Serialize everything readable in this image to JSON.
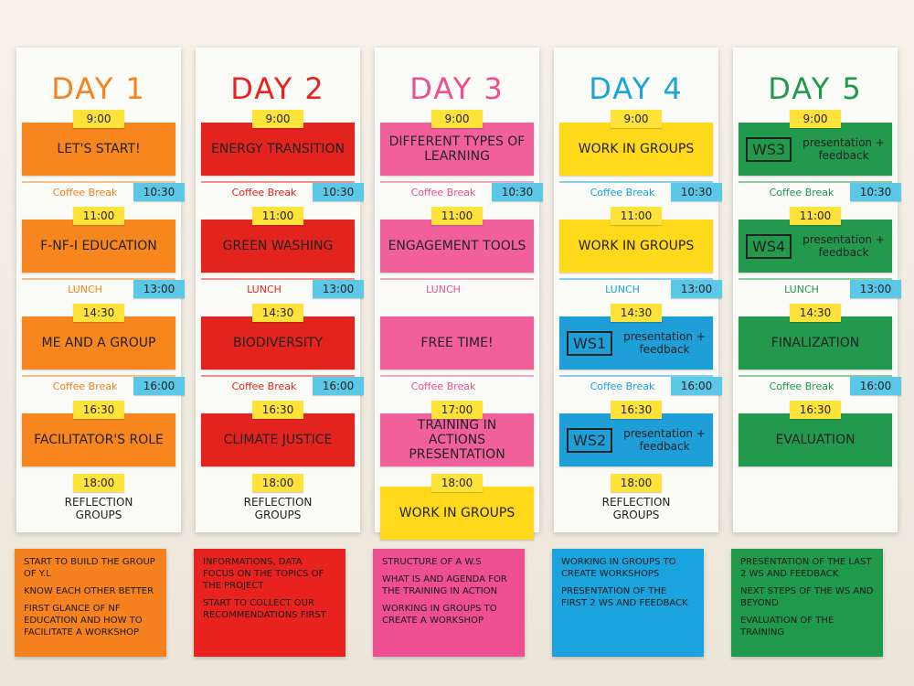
{
  "days": [
    {
      "title": "DAY 1",
      "accent": "#f5821f",
      "note": "#f7861e",
      "blocks": [
        {
          "time": "9:00",
          "session": "LET'S START!"
        },
        {
          "break": "Coffee Break",
          "time": "10:30"
        },
        {
          "time": "11:00",
          "session": "F-NF-I EDUCATION"
        },
        {
          "break": "LUNCH",
          "time": "13:00"
        },
        {
          "time": "14:30",
          "session": "ME AND A GROUP"
        },
        {
          "break": "Coffee Break",
          "time": "16:00"
        },
        {
          "time": "16:30",
          "session": "FACILITATOR'S ROLE"
        },
        {
          "time": "18:00",
          "session": "REFLECTION GROUPS",
          "color": "#fbfbf8"
        }
      ],
      "summary": [
        "START TO BUILD THE GROUP OF Y.L",
        "KNOW EACH OTHER BETTER",
        "FIRST GLANCE OF NF EDUCATION AND HOW TO FACILITATE A WORKSHOP"
      ]
    },
    {
      "title": "DAY 2",
      "accent": "#e8231f",
      "note": "#e3231e",
      "blocks": [
        {
          "time": "9:00",
          "session": "ENERGY TRANSITION"
        },
        {
          "break": "Coffee Break",
          "time": "10:30"
        },
        {
          "time": "11:00",
          "session": "GREEN WASHING"
        },
        {
          "break": "LUNCH",
          "time": "13:00"
        },
        {
          "time": "14:30",
          "session": "BIODIVERSITY"
        },
        {
          "break": "Coffee Break",
          "time": "16:00"
        },
        {
          "time": "16:30",
          "session": "CLIMATE JUSTICE"
        },
        {
          "time": "18:00",
          "session": "REFLECTION GROUPS",
          "color": "#fbfbf8"
        }
      ],
      "summary": [
        "INFORMATIONS, DATA FOCUS ON THE TOPICS OF THE PROJECT",
        "START TO COLLECT OUR RECOMMENDATIONS FIRST"
      ]
    },
    {
      "title": "DAY 3",
      "accent": "#ee4f93",
      "note": "#f2609c",
      "blocks": [
        {
          "time": "9:00",
          "session": "DIFFERENT TYPES OF LEARNING"
        },
        {
          "break": "Coffee Break",
          "time": "10:30"
        },
        {
          "time": "11:00",
          "session": "ENGAGEMENT TOOLS"
        },
        {
          "break": "LUNCH"
        },
        {
          "session": "FREE TIME!"
        },
        {
          "break": "Coffee Break"
        },
        {
          "time": "17:00",
          "session": "Training in Actions PRESENTATION"
        },
        {
          "time": "18:00",
          "session": "WORK IN GROUPS",
          "color": "#ffd91a"
        }
      ],
      "summary": [
        "STRUCTURE OF A W.S",
        "WHAT IS AND AGENDA FOR THE TRAINING IN ACTION",
        "WORKING IN GROUPS TO CREATE A WORKSHOP"
      ]
    },
    {
      "title": "DAY 4",
      "accent": "#1aa3dc",
      "note": "#ffd91a",
      "blocks": [
        {
          "time": "9:00",
          "session": "WORK IN GROUPS"
        },
        {
          "break": "Coffee Break",
          "time": "10:30"
        },
        {
          "time": "11:00",
          "session": "WORK IN GROUPS"
        },
        {
          "break": "LUNCH",
          "time": "13:00"
        },
        {
          "time": "14:30",
          "tag": "WS1",
          "session": "presentation + feedback",
          "color": "#1e9fd8"
        },
        {
          "break": "Coffee Break",
          "time": "16:00"
        },
        {
          "time": "16:30",
          "tag": "WS2",
          "session": "presentation + feedback",
          "color": "#1e9fd8"
        },
        {
          "time": "18:00",
          "session": "REFLECTION GROUPS",
          "color": "#fbfbf8"
        }
      ],
      "summary": [
        "WORKING IN GROUPS TO CREATE WORKSHOPS",
        "PRESENTATION OF THE FIRST 2 WS AND FEEDBACK"
      ]
    },
    {
      "title": "DAY 5",
      "accent": "#1f9a4c",
      "note": "#23994e",
      "blocks": [
        {
          "time": "9:00",
          "tag": "WS3",
          "session": "presentation + feedback"
        },
        {
          "break": "Coffee Break",
          "time": "10:30"
        },
        {
          "time": "11:00",
          "tag": "WS4",
          "session": "presentation + feedback"
        },
        {
          "break": "LUNCH",
          "time": "13:00"
        },
        {
          "time": "14:30",
          "session": "FINALIZATION"
        },
        {
          "break": "Coffee Break",
          "time": "16:00"
        },
        {
          "time": "16:30",
          "session": "EVALUATION"
        }
      ],
      "summary": [
        "PRESENTATION OF THE LAST 2 WS AND FEEDBACK",
        "NEXT STEPS OF THE WS AND BEYOND",
        "EVALUATION OF THE TRAINING"
      ]
    }
  ]
}
